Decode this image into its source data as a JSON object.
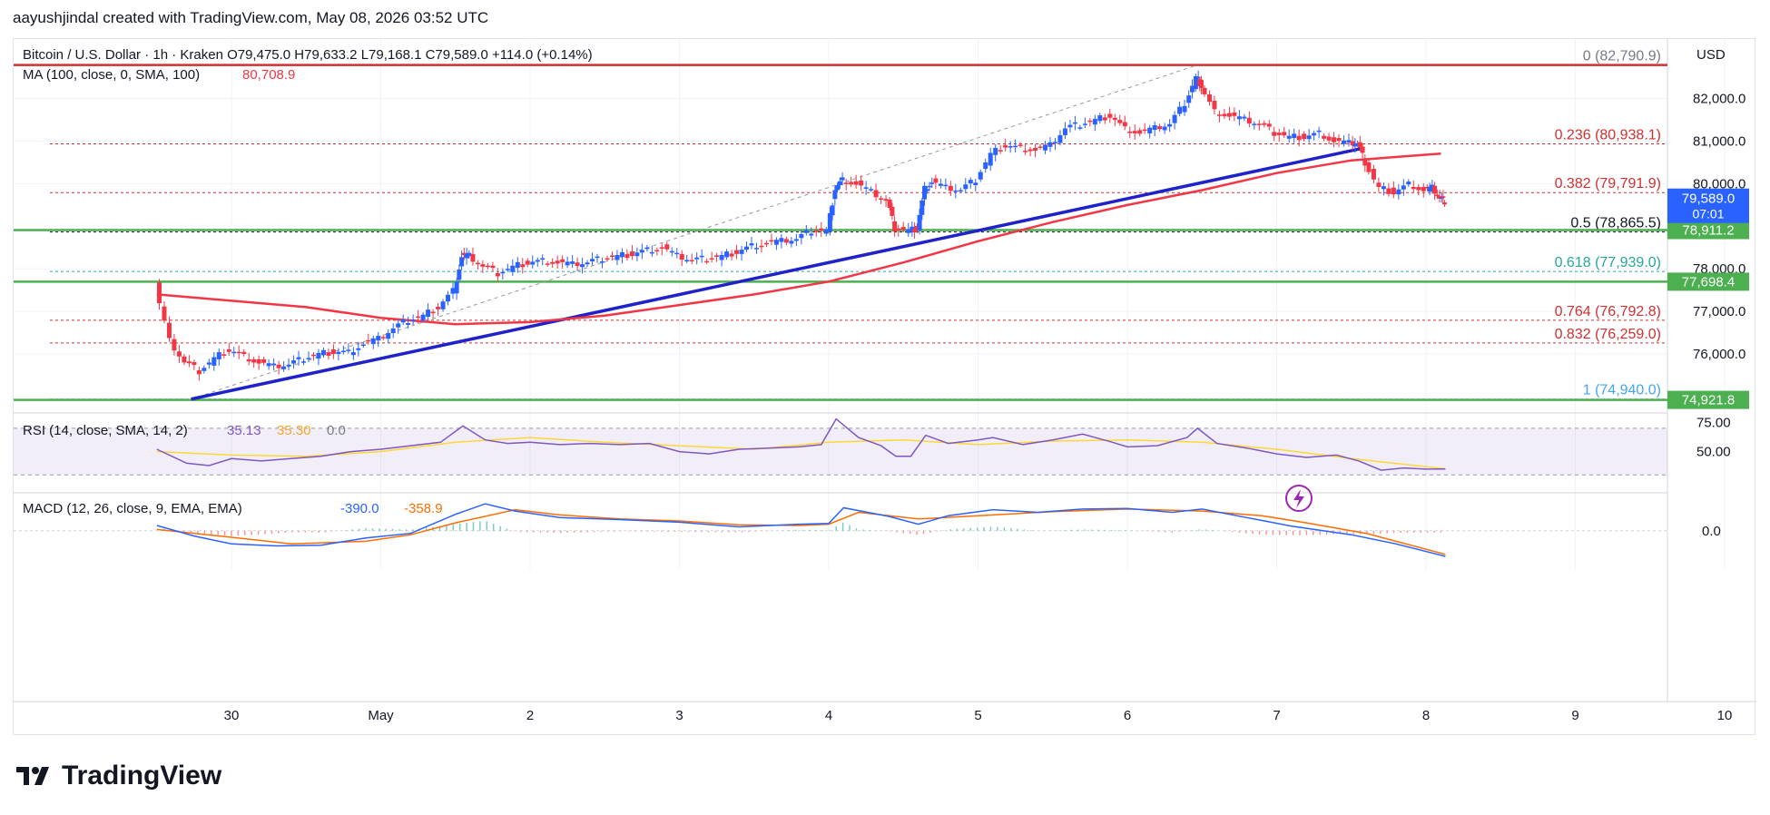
{
  "header": "aayushjindal created with TradingView.com, May 08, 2026 03:52 UTC",
  "footer": {
    "brand": "TradingView",
    "logo_icon": "tradingview-logo-icon"
  },
  "colors": {
    "up": "#2962ff",
    "down": "#f23645",
    "ma": "#f23645",
    "green": "#4caf50",
    "trend": "#1e22c8",
    "fib_red": "#d32f2f",
    "fib_teal": "#26a69a",
    "fib_blue": "#42a5f5",
    "rsi": "#7e57c2",
    "rsi_ma": "#fdd835",
    "macd": "#2962ff",
    "signal": "#ff6d00"
  },
  "chart_data": [
    {
      "type": "candlestick",
      "symbol_line": "Bitcoin / U.S. Dollar · 1h · Kraken  O79,475.0  H79,633.2  L79,168.1  C79,589.0  +114.0 (+0.14%)",
      "ma_line": {
        "label": "MA (100, close, 0, SMA, 100)",
        "value": "80,708.9"
      },
      "currency": "USD",
      "ylim": [
        74700,
        83400
      ],
      "y_ticks": [
        "82,000.0",
        "81,000.0",
        "80,000.0",
        "78,000.0",
        "77,000.0",
        "76,000.0"
      ],
      "y_tick_values": [
        82000,
        81000,
        80000,
        78000,
        77000,
        76000
      ],
      "x_tick_labels": [
        "30",
        "May",
        "2",
        "3",
        "4",
        "5",
        "6",
        "7",
        "8",
        "9",
        "10"
      ],
      "x_tick_days": [
        0,
        1,
        2,
        3,
        4,
        5,
        6,
        7,
        8,
        9,
        10
      ],
      "price_badge": {
        "price": "79,589.0",
        "countdown": "07:01"
      },
      "horizontal_levels": [
        {
          "value": 82790.9,
          "style": "red"
        },
        {
          "value": 78911.2,
          "label": "78,911.2",
          "style": "green"
        },
        {
          "value": 77698.4,
          "label": "77,698.4",
          "style": "green"
        },
        {
          "value": 74921.8,
          "label": "74,921.8",
          "style": "green"
        }
      ],
      "fib_levels": [
        {
          "ratio": "0",
          "value": 82790.9,
          "label": "0 (82,790.9)",
          "color": "#787b86"
        },
        {
          "ratio": "0.236",
          "value": 80938.1,
          "label": "0.236 (80,938.1)",
          "color": "#d32f2f"
        },
        {
          "ratio": "0.382",
          "value": 79791.9,
          "label": "0.382 (79,791.9)",
          "color": "#d32f2f"
        },
        {
          "ratio": "0.5",
          "value": 78865.5,
          "label": "0.5 (78,865.5)",
          "color": "#131722"
        },
        {
          "ratio": "0.618",
          "value": 77939.0,
          "label": "0.618 (77,939.0)",
          "color": "#26a69a"
        },
        {
          "ratio": "0.764",
          "value": 76792.8,
          "label": "0.764 (76,792.8)",
          "color": "#d32f2f"
        },
        {
          "ratio": "0.832",
          "value": 76259.0,
          "label": "0.832 (76,259.0)",
          "color": "#d32f2f"
        },
        {
          "ratio": "1",
          "value": 74940.0,
          "label": "1 (74,940.0)",
          "color": "#42a5f5"
        }
      ],
      "trendline": [
        {
          "day": -0.27,
          "price": 74940
        },
        {
          "day": 7.57,
          "price": 80830
        }
      ],
      "fib_diagonal": [
        {
          "day": -0.27,
          "price": 74940
        },
        {
          "day": 6.47,
          "price": 82790.9
        }
      ],
      "price_path": [
        [
          -0.5,
          77600
        ],
        [
          -0.4,
          76300
        ],
        [
          -0.3,
          75800
        ],
        [
          -0.2,
          75600
        ],
        [
          -0.1,
          75900
        ],
        [
          0.0,
          76100
        ],
        [
          0.1,
          75950
        ],
        [
          0.2,
          75800
        ],
        [
          0.3,
          75700
        ],
        [
          0.4,
          75750
        ],
        [
          0.5,
          75900
        ],
        [
          0.6,
          76000
        ],
        [
          0.7,
          76050
        ],
        [
          0.8,
          76050
        ],
        [
          0.9,
          76250
        ],
        [
          1.0,
          76350
        ],
        [
          1.1,
          76600
        ],
        [
          1.2,
          76800
        ],
        [
          1.3,
          76900
        ],
        [
          1.4,
          77100
        ],
        [
          1.5,
          77500
        ],
        [
          1.55,
          78300
        ],
        [
          1.6,
          78300
        ],
        [
          1.7,
          78050
        ],
        [
          1.8,
          77900
        ],
        [
          1.9,
          78050
        ],
        [
          2.0,
          78150
        ],
        [
          2.1,
          78200
        ],
        [
          2.2,
          78150
        ],
        [
          2.3,
          78100
        ],
        [
          2.4,
          78150
        ],
        [
          2.5,
          78250
        ],
        [
          2.6,
          78300
        ],
        [
          2.7,
          78350
        ],
        [
          2.8,
          78450
        ],
        [
          2.9,
          78500
        ],
        [
          3.0,
          78300
        ],
        [
          3.1,
          78200
        ],
        [
          3.2,
          78250
        ],
        [
          3.3,
          78300
        ],
        [
          3.4,
          78400
        ],
        [
          3.5,
          78550
        ],
        [
          3.6,
          78600
        ],
        [
          3.7,
          78650
        ],
        [
          3.8,
          78700
        ],
        [
          3.9,
          78900
        ],
        [
          4.0,
          78900
        ],
        [
          4.05,
          79900
        ],
        [
          4.1,
          80100
        ],
        [
          4.2,
          80000
        ],
        [
          4.3,
          79800
        ],
        [
          4.4,
          79600
        ],
        [
          4.45,
          78950
        ],
        [
          4.55,
          78900
        ],
        [
          4.6,
          78950
        ],
        [
          4.65,
          79900
        ],
        [
          4.7,
          80050
        ],
        [
          4.8,
          79900
        ],
        [
          4.9,
          79850
        ],
        [
          5.0,
          80100
        ],
        [
          5.1,
          80700
        ],
        [
          5.2,
          80900
        ],
        [
          5.3,
          80850
        ],
        [
          5.4,
          80800
        ],
        [
          5.5,
          80900
        ],
        [
          5.6,
          81300
        ],
        [
          5.7,
          81400
        ],
        [
          5.8,
          81500
        ],
        [
          5.9,
          81600
        ],
        [
          6.0,
          81300
        ],
        [
          6.1,
          81200
        ],
        [
          6.2,
          81300
        ],
        [
          6.3,
          81400
        ],
        [
          6.4,
          81900
        ],
        [
          6.47,
          82500
        ],
        [
          6.5,
          82300
        ],
        [
          6.6,
          81700
        ],
        [
          6.7,
          81600
        ],
        [
          6.8,
          81500
        ],
        [
          6.9,
          81400
        ],
        [
          7.0,
          81200
        ],
        [
          7.1,
          81100
        ],
        [
          7.2,
          81100
        ],
        [
          7.3,
          81200
        ],
        [
          7.4,
          81000
        ],
        [
          7.5,
          80950
        ],
        [
          7.55,
          80950
        ],
        [
          7.6,
          80500
        ],
        [
          7.7,
          79900
        ],
        [
          7.8,
          79800
        ],
        [
          7.9,
          80000
        ],
        [
          8.0,
          79850
        ],
        [
          8.05,
          79900
        ],
        [
          8.1,
          79650
        ],
        [
          8.13,
          79589
        ]
      ],
      "ma_path": [
        [
          -0.5,
          77400
        ],
        [
          0.0,
          77250
        ],
        [
          0.5,
          77100
        ],
        [
          1.0,
          76850
        ],
        [
          1.5,
          76700
        ],
        [
          2.0,
          76750
        ],
        [
          2.5,
          76900
        ],
        [
          3.0,
          77150
        ],
        [
          3.5,
          77400
        ],
        [
          4.0,
          77700
        ],
        [
          4.5,
          78150
        ],
        [
          5.0,
          78650
        ],
        [
          5.5,
          79100
        ],
        [
          6.0,
          79500
        ],
        [
          6.5,
          79850
        ],
        [
          7.0,
          80250
        ],
        [
          7.5,
          80550
        ],
        [
          8.1,
          80708.9
        ]
      ]
    },
    {
      "type": "line",
      "indicator": "RSI (14, close, SMA, 14, 2)",
      "values_text": [
        "35.13",
        "35.30",
        "0.0"
      ],
      "y_ticks": [
        "75.00",
        "50.00"
      ],
      "y_tick_values": [
        75,
        50
      ],
      "ylim": [
        17,
        80
      ],
      "band": [
        30,
        70
      ],
      "series": [
        {
          "name": "RSI",
          "points": [
            [
              -0.5,
              52
            ],
            [
              -0.3,
              40
            ],
            [
              -0.15,
              38
            ],
            [
              0.0,
              44
            ],
            [
              0.2,
              42
            ],
            [
              0.4,
              44
            ],
            [
              0.6,
              46
            ],
            [
              0.8,
              50
            ],
            [
              1.0,
              52
            ],
            [
              1.2,
              55
            ],
            [
              1.4,
              58
            ],
            [
              1.55,
              72
            ],
            [
              1.7,
              60
            ],
            [
              1.85,
              57
            ],
            [
              2.0,
              58
            ],
            [
              2.2,
              56
            ],
            [
              2.4,
              57
            ],
            [
              2.6,
              56
            ],
            [
              2.8,
              57
            ],
            [
              3.0,
              50
            ],
            [
              3.2,
              48
            ],
            [
              3.4,
              52
            ],
            [
              3.6,
              53
            ],
            [
              3.8,
              54
            ],
            [
              3.95,
              56
            ],
            [
              4.05,
              78
            ],
            [
              4.2,
              62
            ],
            [
              4.35,
              55
            ],
            [
              4.45,
              46
            ],
            [
              4.55,
              46
            ],
            [
              4.65,
              64
            ],
            [
              4.8,
              57
            ],
            [
              5.0,
              60
            ],
            [
              5.1,
              62
            ],
            [
              5.3,
              56
            ],
            [
              5.5,
              60
            ],
            [
              5.7,
              65
            ],
            [
              5.9,
              58
            ],
            [
              6.0,
              54
            ],
            [
              6.2,
              55
            ],
            [
              6.4,
              62
            ],
            [
              6.47,
              70
            ],
            [
              6.6,
              57
            ],
            [
              6.8,
              53
            ],
            [
              7.0,
              48
            ],
            [
              7.2,
              45
            ],
            [
              7.4,
              47
            ],
            [
              7.55,
              42
            ],
            [
              7.7,
              34
            ],
            [
              7.85,
              36
            ],
            [
              8.0,
              35
            ],
            [
              8.13,
              35.13
            ]
          ]
        },
        {
          "name": "RSI-based MA",
          "points": [
            [
              -0.5,
              50
            ],
            [
              0.0,
              47
            ],
            [
              0.5,
              46
            ],
            [
              1.0,
              50
            ],
            [
              1.5,
              58
            ],
            [
              2.0,
              62
            ],
            [
              2.5,
              58
            ],
            [
              3.0,
              55
            ],
            [
              3.5,
              52
            ],
            [
              4.0,
              58
            ],
            [
              4.5,
              60
            ],
            [
              5.0,
              56
            ],
            [
              5.5,
              59
            ],
            [
              6.0,
              60
            ],
            [
              6.5,
              58
            ],
            [
              7.0,
              52
            ],
            [
              7.5,
              44
            ],
            [
              8.13,
              35.3
            ]
          ]
        }
      ]
    },
    {
      "type": "line",
      "indicator": "MACD (12, 26, close, 9, EMA, EMA)",
      "values_text": [
        "-390.0",
        "-358.9"
      ],
      "y_ticks": [
        "0.0"
      ],
      "y_tick_values": [
        0
      ],
      "ylim": [
        -500,
        550
      ],
      "series": [
        {
          "name": "MACD",
          "points": [
            [
              -0.5,
              80
            ],
            [
              -0.25,
              -80
            ],
            [
              0.0,
              -200
            ],
            [
              0.3,
              -230
            ],
            [
              0.6,
              -220
            ],
            [
              0.9,
              -110
            ],
            [
              1.2,
              -40
            ],
            [
              1.5,
              250
            ],
            [
              1.7,
              410
            ],
            [
              1.9,
              300
            ],
            [
              2.2,
              200
            ],
            [
              2.6,
              170
            ],
            [
              3.0,
              130
            ],
            [
              3.4,
              60
            ],
            [
              3.8,
              100
            ],
            [
              4.0,
              110
            ],
            [
              4.1,
              350
            ],
            [
              4.4,
              220
            ],
            [
              4.6,
              100
            ],
            [
              4.8,
              230
            ],
            [
              5.1,
              320
            ],
            [
              5.4,
              280
            ],
            [
              5.7,
              330
            ],
            [
              6.0,
              340
            ],
            [
              6.3,
              280
            ],
            [
              6.5,
              330
            ],
            [
              6.8,
              200
            ],
            [
              7.1,
              70
            ],
            [
              7.5,
              -60
            ],
            [
              7.8,
              -200
            ],
            [
              8.13,
              -390
            ]
          ]
        },
        {
          "name": "Signal",
          "points": [
            [
              -0.5,
              20
            ],
            [
              0.0,
              -100
            ],
            [
              0.4,
              -200
            ],
            [
              0.9,
              -160
            ],
            [
              1.2,
              -60
            ],
            [
              1.5,
              120
            ],
            [
              1.9,
              320
            ],
            [
              2.2,
              240
            ],
            [
              2.6,
              180
            ],
            [
              3.0,
              150
            ],
            [
              3.4,
              90
            ],
            [
              3.8,
              80
            ],
            [
              4.0,
              100
            ],
            [
              4.2,
              280
            ],
            [
              4.6,
              180
            ],
            [
              5.0,
              230
            ],
            [
              5.5,
              290
            ],
            [
              6.0,
              330
            ],
            [
              6.5,
              300
            ],
            [
              6.9,
              230
            ],
            [
              7.2,
              120
            ],
            [
              7.6,
              -40
            ],
            [
              8.13,
              -358.9
            ]
          ]
        }
      ]
    }
  ]
}
